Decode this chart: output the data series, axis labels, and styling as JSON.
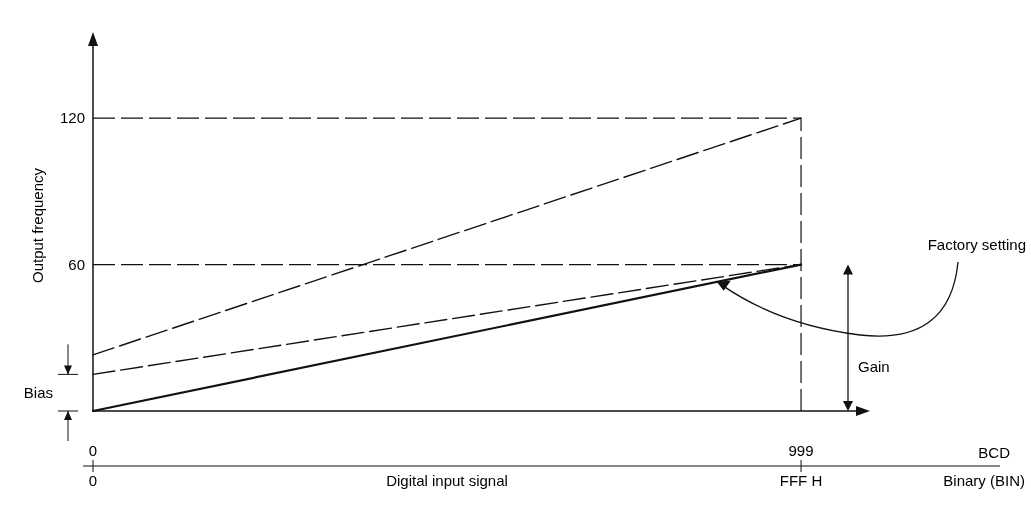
{
  "chart_data": {
    "type": "line",
    "ylabel": "Output frequency",
    "x2label": "Binary (BIN)",
    "x": [
      0,
      999
    ],
    "xlim": [
      0,
      1085
    ],
    "ylim": [
      0,
      152
    ],
    "xticks": [
      0,
      999
    ],
    "yticks": [
      60,
      120
    ],
    "series": [
      {
        "color": "#111111",
        "values": [
          23,
          120
        ],
        "line_style": "dashed"
      },
      {
        "color": "#111111",
        "values": [
          15,
          60
        ],
        "line_style": "dashed"
      },
      {
        "color": "#111111",
        "values": [
          0,
          60
        ],
        "line_style": "solid"
      }
    ],
    "ref_lines": [
      {
        "axis": "y",
        "value": 60,
        "line_style": "dashed"
      },
      {
        "axis": "y",
        "value": 120,
        "line_style": "dashed"
      },
      {
        "axis": "x",
        "value": 999,
        "line_style": "dashed"
      }
    ],
    "annotations": [
      {
        "text": "Factory setting",
        "x": 880,
        "y": 53
      },
      "Gain",
      "Bias",
      "Digital input signal",
      "0",
      "FFF H",
      "BCD"
    ]
  }
}
